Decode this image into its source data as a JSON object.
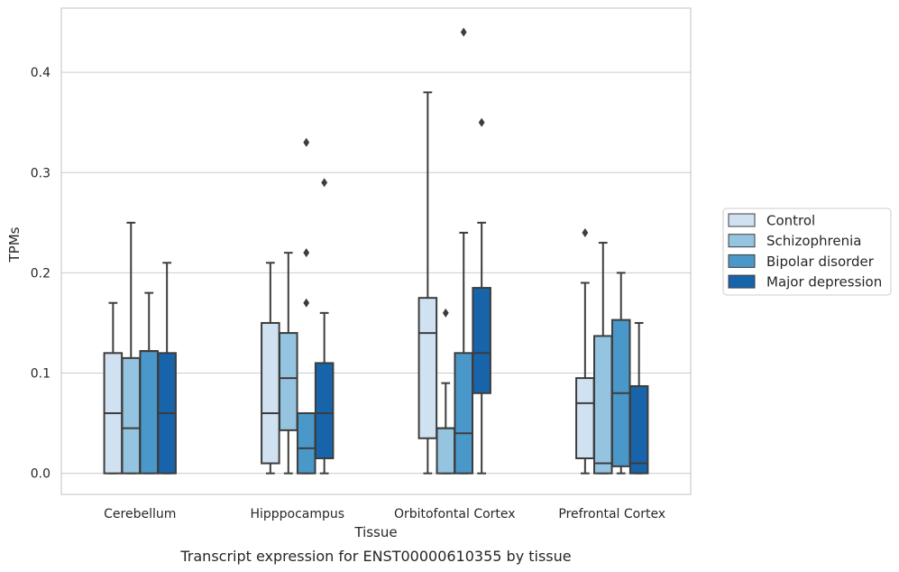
{
  "chart_data": {
    "type": "box",
    "caption": "Transcript expression for ENST00000610355 by tissue",
    "xlabel": "Tissue",
    "ylabel": "TPMs",
    "ylim": [
      -0.021,
      0.464
    ],
    "yticks": [
      "0.0",
      "0.1",
      "0.2",
      "0.3",
      "0.4"
    ],
    "ytick_values": [
      0.0,
      0.1,
      0.2,
      0.3,
      0.4
    ],
    "grid": "horizontal",
    "legend_position": "right",
    "categories": [
      "Cerebellum",
      "Hipppocampus",
      "Orbitofontal Cortex",
      "Prefrontal Cortex"
    ],
    "series": [
      {
        "name": "Control",
        "color": "#d0e1f1",
        "boxes": [
          {
            "whislo": 0.0,
            "q1": 0.0,
            "med": 0.06,
            "q3": 0.12,
            "whishi": 0.17,
            "fliers": []
          },
          {
            "whislo": 0.0,
            "q1": 0.01,
            "med": 0.06,
            "q3": 0.15,
            "whishi": 0.21,
            "fliers": []
          },
          {
            "whislo": 0.0,
            "q1": 0.035,
            "med": 0.14,
            "q3": 0.175,
            "whishi": 0.38,
            "fliers": []
          },
          {
            "whislo": 0.0,
            "q1": 0.015,
            "med": 0.07,
            "q3": 0.095,
            "whishi": 0.19,
            "fliers": [
              0.24
            ]
          }
        ]
      },
      {
        "name": "Schizophrenia",
        "color": "#94c4df",
        "boxes": [
          {
            "whislo": 0.0,
            "q1": 0.0,
            "med": 0.045,
            "q3": 0.115,
            "whishi": 0.25,
            "fliers": []
          },
          {
            "whislo": 0.0,
            "q1": 0.043,
            "med": 0.095,
            "q3": 0.14,
            "whishi": 0.22,
            "fliers": []
          },
          {
            "whislo": 0.0,
            "q1": 0.0,
            "med": 0.045,
            "q3": 0.045,
            "whishi": 0.09,
            "fliers": [
              0.16
            ]
          },
          {
            "whislo": 0.0,
            "q1": 0.0,
            "med": 0.01,
            "q3": 0.137,
            "whishi": 0.23,
            "fliers": []
          }
        ]
      },
      {
        "name": "Bipolar disorder",
        "color": "#4a98c9",
        "boxes": [
          {
            "whislo": 0.0,
            "q1": 0.0,
            "med": 0.122,
            "q3": 0.122,
            "whishi": 0.18,
            "fliers": []
          },
          {
            "whislo": 0.0,
            "q1": 0.0,
            "med": 0.025,
            "q3": 0.06,
            "whishi": 0.06,
            "fliers": [
              0.17,
              0.22,
              0.33
            ]
          },
          {
            "whislo": 0.0,
            "q1": 0.0,
            "med": 0.04,
            "q3": 0.12,
            "whishi": 0.24,
            "fliers": [
              0.44
            ]
          },
          {
            "whislo": 0.0,
            "q1": 0.007,
            "med": 0.08,
            "q3": 0.153,
            "whishi": 0.2,
            "fliers": []
          }
        ]
      },
      {
        "name": "Major depression",
        "color": "#1764ab",
        "boxes": [
          {
            "whislo": 0.0,
            "q1": 0.0,
            "med": 0.06,
            "q3": 0.12,
            "whishi": 0.21,
            "fliers": []
          },
          {
            "whislo": 0.0,
            "q1": 0.015,
            "med": 0.06,
            "q3": 0.11,
            "whishi": 0.16,
            "fliers": [
              0.29
            ]
          },
          {
            "whislo": 0.0,
            "q1": 0.08,
            "med": 0.12,
            "q3": 0.185,
            "whishi": 0.25,
            "fliers": [
              0.35
            ]
          },
          {
            "whislo": 0.0,
            "q1": 0.0,
            "med": 0.01,
            "q3": 0.087,
            "whishi": 0.15,
            "fliers": []
          }
        ]
      }
    ]
  }
}
